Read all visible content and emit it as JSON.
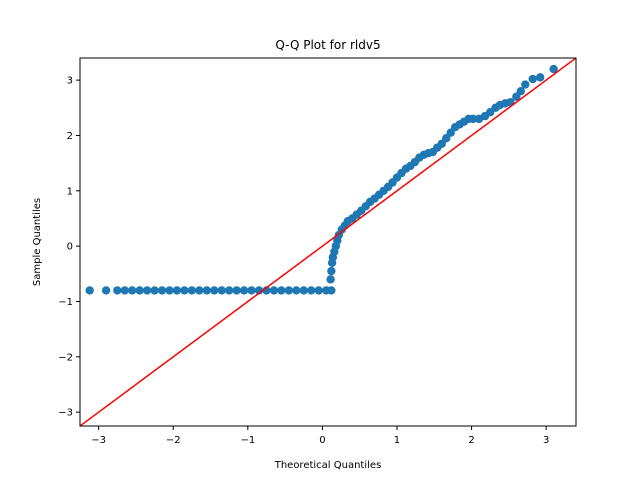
{
  "chart_data": {
    "type": "scatter",
    "title": "Q-Q Plot for rldv5",
    "xlabel": "Theoretical Quantiles",
    "ylabel": "Sample Quantiles",
    "xlim": [
      -3.25,
      3.4
    ],
    "ylim": [
      -3.25,
      3.4
    ],
    "xticks": [
      -3,
      -2,
      -1,
      0,
      1,
      2,
      3
    ],
    "yticks": [
      -3,
      -2,
      -1,
      0,
      1,
      2,
      3
    ],
    "grid": false,
    "point_color": "#1f77b4",
    "reference_line": {
      "color": "#ff0000",
      "x": [
        -3.25,
        3.4
      ],
      "y": [
        -3.25,
        3.4
      ]
    },
    "series": [
      {
        "points": [
          [
            -3.12,
            -0.8
          ],
          [
            -2.9,
            -0.8
          ],
          [
            -2.75,
            -0.8
          ],
          [
            -2.65,
            -0.8
          ],
          [
            -2.55,
            -0.8
          ],
          [
            -2.45,
            -0.8
          ],
          [
            -2.35,
            -0.8
          ],
          [
            -2.25,
            -0.8
          ],
          [
            -2.15,
            -0.8
          ],
          [
            -2.05,
            -0.8
          ],
          [
            -1.95,
            -0.8
          ],
          [
            -1.85,
            -0.8
          ],
          [
            -1.75,
            -0.8
          ],
          [
            -1.65,
            -0.8
          ],
          [
            -1.55,
            -0.8
          ],
          [
            -1.45,
            -0.8
          ],
          [
            -1.35,
            -0.8
          ],
          [
            -1.25,
            -0.8
          ],
          [
            -1.15,
            -0.8
          ],
          [
            -1.05,
            -0.8
          ],
          [
            -0.95,
            -0.8
          ],
          [
            -0.85,
            -0.8
          ],
          [
            -0.75,
            -0.8
          ],
          [
            -0.65,
            -0.8
          ],
          [
            -0.55,
            -0.8
          ],
          [
            -0.45,
            -0.8
          ],
          [
            -0.35,
            -0.8
          ],
          [
            -0.25,
            -0.8
          ],
          [
            -0.15,
            -0.8
          ],
          [
            -0.05,
            -0.8
          ],
          [
            0.05,
            -0.8
          ],
          [
            0.12,
            -0.8
          ],
          [
            0.11,
            -0.6
          ],
          [
            0.12,
            -0.45
          ],
          [
            0.13,
            -0.3
          ],
          [
            0.14,
            -0.2
          ],
          [
            0.16,
            -0.1
          ],
          [
            0.18,
            0.0
          ],
          [
            0.2,
            0.1
          ],
          [
            0.22,
            0.2
          ],
          [
            0.26,
            0.3
          ],
          [
            0.3,
            0.37
          ],
          [
            0.34,
            0.45
          ],
          [
            0.4,
            0.5
          ],
          [
            0.46,
            0.57
          ],
          [
            0.52,
            0.64
          ],
          [
            0.58,
            0.72
          ],
          [
            0.64,
            0.8
          ],
          [
            0.7,
            0.86
          ],
          [
            0.76,
            0.93
          ],
          [
            0.82,
            1.0
          ],
          [
            0.88,
            1.07
          ],
          [
            0.94,
            1.15
          ],
          [
            1.0,
            1.24
          ],
          [
            1.06,
            1.32
          ],
          [
            1.12,
            1.4
          ],
          [
            1.18,
            1.45
          ],
          [
            1.24,
            1.52
          ],
          [
            1.3,
            1.6
          ],
          [
            1.36,
            1.65
          ],
          [
            1.42,
            1.68
          ],
          [
            1.48,
            1.7
          ],
          [
            1.54,
            1.78
          ],
          [
            1.6,
            1.85
          ],
          [
            1.66,
            1.95
          ],
          [
            1.72,
            2.05
          ],
          [
            1.78,
            2.15
          ],
          [
            1.84,
            2.2
          ],
          [
            1.9,
            2.25
          ],
          [
            1.96,
            2.3
          ],
          [
            2.02,
            2.3
          ],
          [
            2.1,
            2.3
          ],
          [
            2.18,
            2.35
          ],
          [
            2.25,
            2.42
          ],
          [
            2.32,
            2.5
          ],
          [
            2.38,
            2.55
          ],
          [
            2.45,
            2.58
          ],
          [
            2.52,
            2.6
          ],
          [
            2.6,
            2.7
          ],
          [
            2.66,
            2.8
          ],
          [
            2.72,
            2.92
          ],
          [
            2.82,
            3.02
          ],
          [
            2.92,
            3.05
          ],
          [
            3.1,
            3.2
          ]
        ]
      }
    ]
  }
}
